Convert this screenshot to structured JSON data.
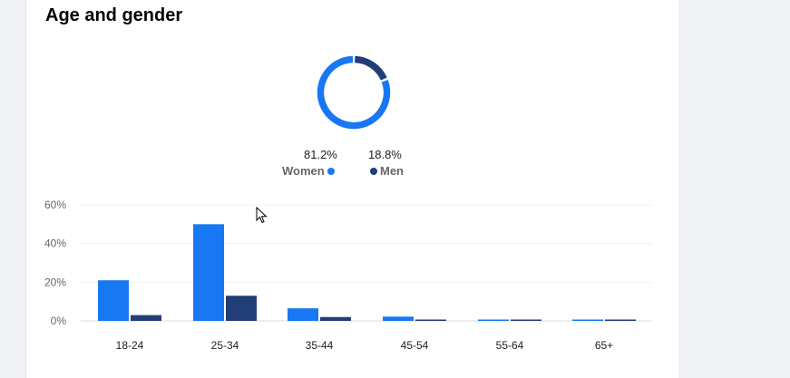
{
  "card": {
    "title": "Age and gender"
  },
  "gender": {
    "women": {
      "label": "Women",
      "percent_text": "81.2%",
      "value": 81.2,
      "color": "#1877f2"
    },
    "men": {
      "label": "Men",
      "percent_text": "18.8%",
      "value": 18.8,
      "color": "#223e76"
    }
  },
  "chart_data": {
    "type": "bar",
    "categories": [
      "18-24",
      "25-34",
      "35-44",
      "45-54",
      "55-64",
      "65+"
    ],
    "series": [
      {
        "name": "Women",
        "color": "#1877f2",
        "values": [
          21,
          50,
          6.5,
          2.2,
          0.6,
          0.6
        ]
      },
      {
        "name": "Men",
        "color": "#223e76",
        "values": [
          3,
          13,
          2,
          0.6,
          0.5,
          0.5
        ]
      }
    ],
    "yticks": [
      "0%",
      "20%",
      "40%",
      "60%"
    ],
    "ytick_values": [
      0,
      20,
      40,
      60
    ],
    "ylim": [
      0,
      60
    ],
    "grid": true
  }
}
